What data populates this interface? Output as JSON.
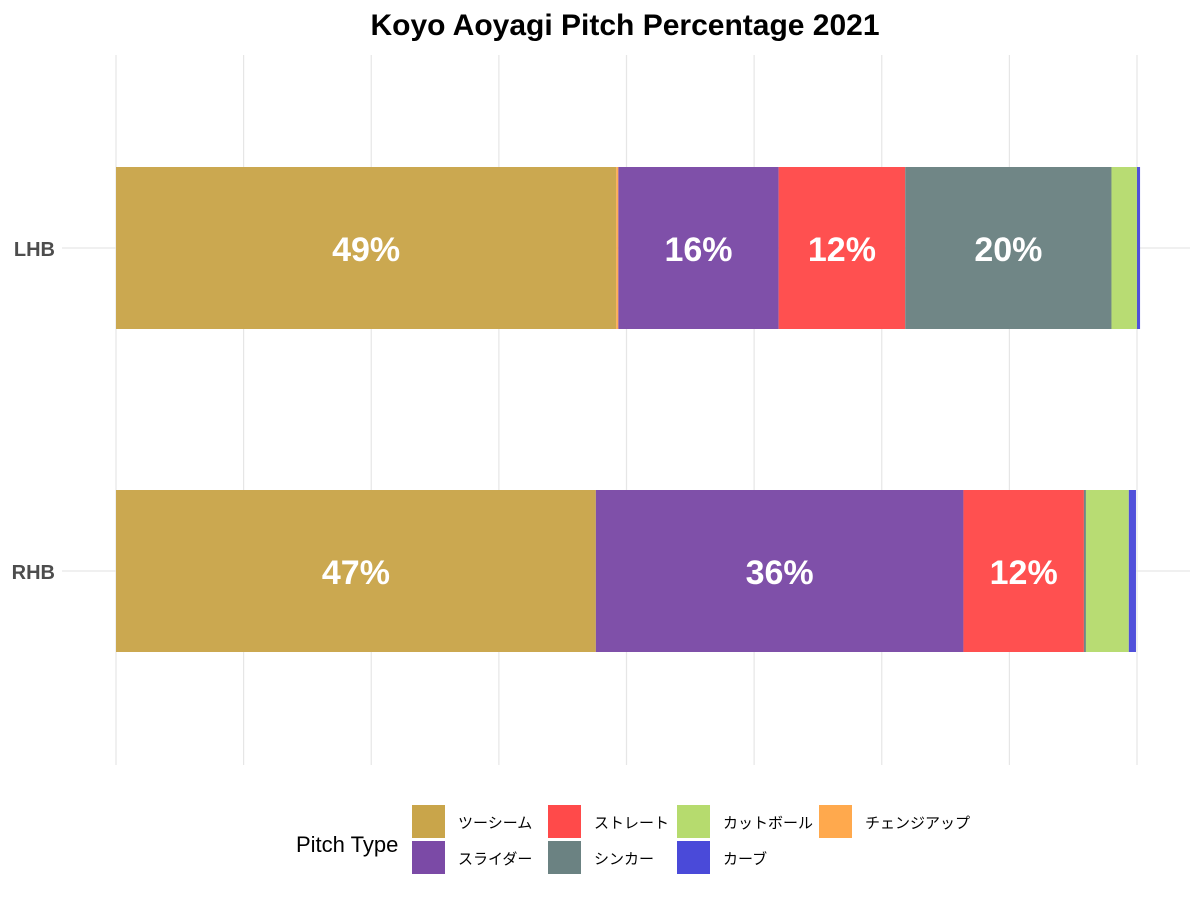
{
  "chart_data": {
    "type": "bar",
    "orientation": "horizontal",
    "stacked": true,
    "title": "Koyo Aoyagi Pitch Percentage 2021",
    "xlabel": "",
    "ylabel": "",
    "xlim": [
      0,
      1
    ],
    "categories": [
      "LHB",
      "RHB"
    ],
    "series": [
      {
        "name": "ツーシーム",
        "color": "#c9a54a",
        "values": [
          0.49,
          0.47
        ]
      },
      {
        "name": "チェンジアップ",
        "color": "#ffa94d",
        "values": [
          0.002,
          0.0
        ]
      },
      {
        "name": "スライダー",
        "color": "#7b4aa6",
        "values": [
          0.157,
          0.36
        ]
      },
      {
        "name": "ストレート",
        "color": "#ff4a4a",
        "values": [
          0.124,
          0.118
        ]
      },
      {
        "name": "シンカー",
        "color": "#6b8282",
        "values": [
          0.202,
          0.002
        ]
      },
      {
        "name": "カットボール",
        "color": "#b6db6e",
        "values": [
          0.025,
          0.042
        ]
      },
      {
        "name": "カーブ",
        "color": "#4a4ad9",
        "values": [
          0.003,
          0.007
        ]
      }
    ],
    "data_labels": [
      {
        "category": "LHB",
        "series": "ツーシーム",
        "text": "49%"
      },
      {
        "category": "LHB",
        "series": "スライダー",
        "text": "16%"
      },
      {
        "category": "LHB",
        "series": "ストレート",
        "text": "12%"
      },
      {
        "category": "LHB",
        "series": "シンカー",
        "text": "20%"
      },
      {
        "category": "RHB",
        "series": "ツーシーム",
        "text": "47%"
      },
      {
        "category": "RHB",
        "series": "スライダー",
        "text": "36%"
      },
      {
        "category": "RHB",
        "series": "ストレート",
        "text": "12%"
      }
    ],
    "grid": true,
    "legend": {
      "title": "Pitch Type",
      "position": "bottom",
      "order": [
        "ツーシーム",
        "スライダー",
        "ストレート",
        "シンカー",
        "カットボール",
        "カーブ",
        "チェンジアップ"
      ]
    }
  }
}
